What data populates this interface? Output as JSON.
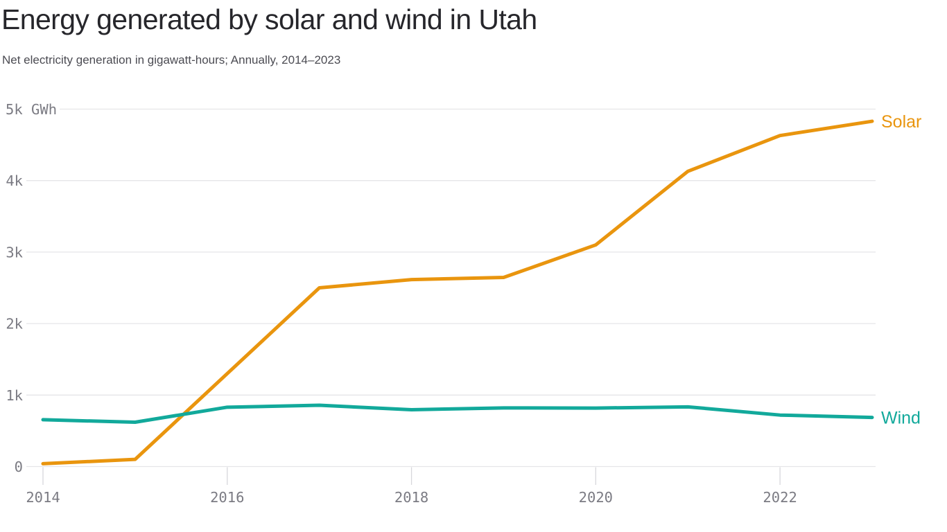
{
  "header": {
    "title": "Energy generated by solar and wind in Utah",
    "subtitle": "Net electricity generation in gigawatt-hours; Annually, 2014–2023"
  },
  "chart_data": {
    "type": "line",
    "title": "Energy generated by solar and wind in Utah",
    "subtitle": "Net electricity generation in gigawatt-hours; Annually, 2014–2023",
    "unit": "GWh",
    "x": [
      2014,
      2015,
      2016,
      2017,
      2018,
      2019,
      2020,
      2021,
      2022,
      2023
    ],
    "series": [
      {
        "name": "Solar",
        "color": "#e9950e",
        "values": [
          40,
          100,
          1300,
          2500,
          2615,
          2645,
          3100,
          4130,
          4630,
          4830
        ]
      },
      {
        "name": "Wind",
        "color": "#12a99b",
        "values": [
          655,
          620,
          830,
          857,
          795,
          820,
          818,
          835,
          720,
          687
        ]
      }
    ],
    "ylim": [
      0,
      5000
    ],
    "xlim": [
      2014,
      2023
    ],
    "y_ticks": [
      {
        "value": 0,
        "label": "0"
      },
      {
        "value": 1000,
        "label": "1k"
      },
      {
        "value": 2000,
        "label": "2k"
      },
      {
        "value": 3000,
        "label": "3k"
      },
      {
        "value": 4000,
        "label": "4k"
      },
      {
        "value": 5000,
        "label": "5k GWh"
      }
    ],
    "x_ticks": [
      {
        "value": 2014,
        "label": "2014"
      },
      {
        "value": 2016,
        "label": "2016"
      },
      {
        "value": 2018,
        "label": "2018"
      },
      {
        "value": 2020,
        "label": "2020"
      },
      {
        "value": 2022,
        "label": "2022"
      }
    ],
    "grid": "horizontal",
    "legend_position": "line-end-right"
  },
  "colors": {
    "title": "#26262b",
    "subtitle": "#4b4b52",
    "axis_label": "#7b7b83",
    "gridline": "#e5e5e8",
    "tick_mark": "#d7d7db",
    "background": "#ffffff"
  }
}
